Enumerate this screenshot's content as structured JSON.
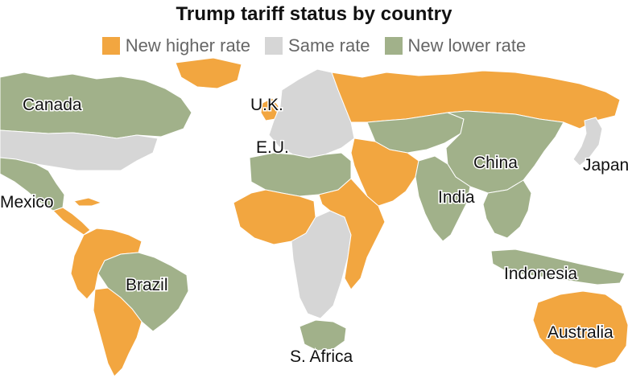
{
  "title": "Trump tariff status by country",
  "colors": {
    "higher": "#f2a640",
    "same": "#d6d6d6",
    "lower": "#a1b18a",
    "border": "#ffffff"
  },
  "legend": [
    {
      "key": "higher",
      "label": "New higher rate"
    },
    {
      "key": "same",
      "label": "Same rate"
    },
    {
      "key": "lower",
      "label": "New lower rate"
    }
  ],
  "labels": {
    "canada": "Canada",
    "uk": "U.K.",
    "eu": "E.U.",
    "mexico": "Mexico",
    "china": "China",
    "japan": "Japan",
    "india": "India",
    "brazil": "Brazil",
    "indonesia": "Indonesia",
    "australia": "Australia",
    "south_africa": "S. Africa"
  },
  "countries": [
    {
      "name": "canada",
      "status": "lower"
    },
    {
      "name": "united-states",
      "status": "same"
    },
    {
      "name": "mexico",
      "status": "lower"
    },
    {
      "name": "central-america",
      "status": "higher"
    },
    {
      "name": "brazil",
      "status": "lower"
    },
    {
      "name": "andean-south-america",
      "status": "higher"
    },
    {
      "name": "argentina",
      "status": "higher"
    },
    {
      "name": "uk",
      "status": "higher"
    },
    {
      "name": "europe",
      "status": "same"
    },
    {
      "name": "russia",
      "status": "higher"
    },
    {
      "name": "north-africa",
      "status": "lower"
    },
    {
      "name": "west-africa",
      "status": "higher"
    },
    {
      "name": "central-africa",
      "status": "same"
    },
    {
      "name": "east-africa",
      "status": "higher"
    },
    {
      "name": "south-africa",
      "status": "lower"
    },
    {
      "name": "middle-east",
      "status": "higher"
    },
    {
      "name": "central-asia",
      "status": "lower"
    },
    {
      "name": "china",
      "status": "lower"
    },
    {
      "name": "india",
      "status": "lower"
    },
    {
      "name": "japan",
      "status": "same"
    },
    {
      "name": "southeast-asia",
      "status": "lower"
    },
    {
      "name": "indonesia",
      "status": "lower"
    },
    {
      "name": "australia",
      "status": "higher"
    },
    {
      "name": "greenland",
      "status": "higher"
    }
  ]
}
